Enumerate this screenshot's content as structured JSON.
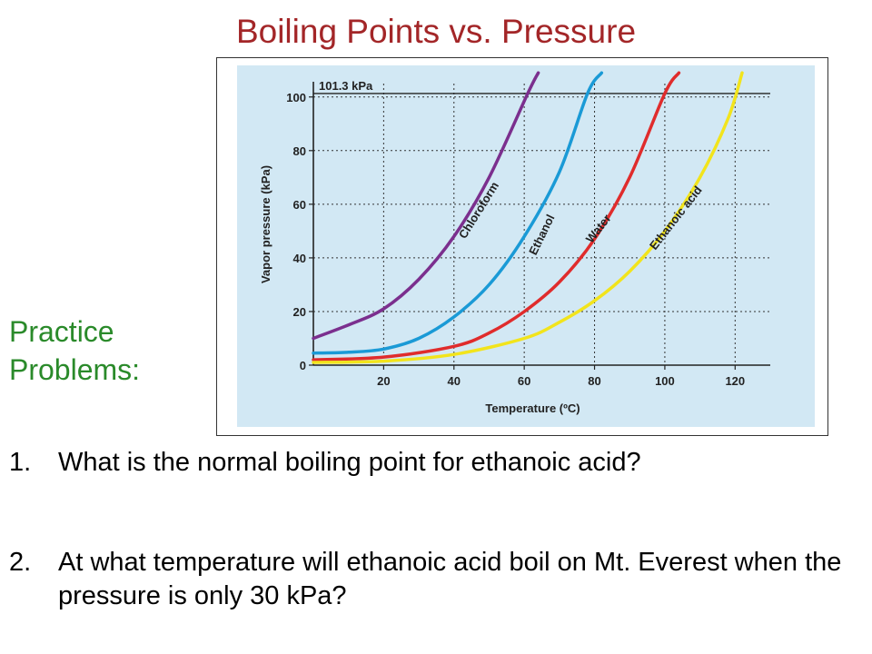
{
  "slide": {
    "title": "Boiling Points vs. Pressure",
    "practice_line1": "Practice",
    "practice_line2": "Problems:"
  },
  "questions": [
    {
      "number": "1.",
      "text": "What is the normal boiling point for ethanoic acid?"
    },
    {
      "number": "2.",
      "text": "At what temperature will ethanoic acid boil on Mt. Everest when the pressure is only 30 kPa?"
    }
  ],
  "colors": {
    "title": "#a32628",
    "practice": "#2a8a2a",
    "chart_background": "#d2e8f4",
    "chloroform": "#7b2f8e",
    "ethanol": "#1a9ad6",
    "water": "#e02c2c",
    "ethanoic_acid": "#f2e41c"
  },
  "chart_data": {
    "type": "line",
    "xlabel": "Temperature (ºC)",
    "ylabel": "Vapor pressure (kPa)",
    "xlim": [
      0,
      130
    ],
    "ylim": [
      0,
      105
    ],
    "x_ticks": [
      20,
      40,
      60,
      80,
      100,
      120
    ],
    "y_ticks": [
      0,
      20,
      40,
      60,
      80,
      100
    ],
    "grid": true,
    "reference_line": {
      "label": "101.3 kPa",
      "y": 101.3
    },
    "series": [
      {
        "name": "Chloroform",
        "color": "#7b2f8e",
        "x": [
          0,
          10,
          20,
          30,
          40,
          50,
          61,
          64
        ],
        "y": [
          10,
          15,
          21,
          32,
          48,
          70,
          101.3,
          109
        ]
      },
      {
        "name": "Ethanol",
        "color": "#1a9ad6",
        "x": [
          0,
          10,
          20,
          30,
          40,
          50,
          60,
          70,
          78,
          82
        ],
        "y": [
          4.5,
          4.8,
          6,
          10,
          18,
          30,
          48,
          72,
          101.3,
          109
        ]
      },
      {
        "name": "Water",
        "color": "#e02c2c",
        "x": [
          0,
          20,
          40,
          50,
          60,
          70,
          80,
          90,
          100,
          104
        ],
        "y": [
          2,
          3,
          7,
          12,
          20,
          31,
          47,
          70,
          101.3,
          109
        ]
      },
      {
        "name": "Ethanoic acid",
        "color": "#f2e41c",
        "x": [
          0,
          20,
          40,
          60,
          70,
          80,
          90,
          100,
          110,
          118,
          122
        ],
        "y": [
          1,
          1.5,
          4,
          10,
          16,
          24,
          35,
          50,
          70,
          92,
          109
        ]
      }
    ]
  }
}
